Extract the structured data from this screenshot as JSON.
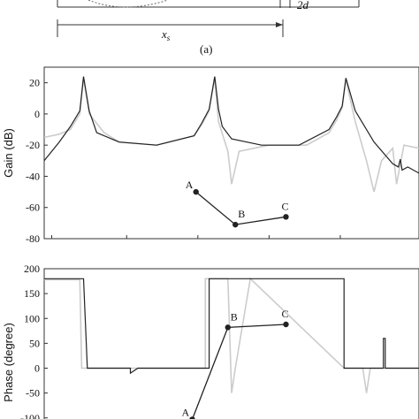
{
  "top_diagram": {
    "x_dimension": "x",
    "x_dimension_sub": "s",
    "gap_dimension": "2d",
    "caption": "(a)"
  },
  "chart_data": [
    {
      "type": "line",
      "ylabel": "Gain (dB)",
      "ylim": [
        -80,
        30
      ],
      "yticks": [
        20,
        0,
        -20,
        -40,
        -60,
        -80
      ],
      "xlim": [
        0,
        1
      ],
      "series": [
        {
          "color": "#222222",
          "x": [
            0,
            0.04,
            0.07,
            0.095,
            0.105,
            0.12,
            0.14,
            0.2,
            0.3,
            0.4,
            0.42,
            0.44,
            0.455,
            0.465,
            0.475,
            0.5,
            0.58,
            0.68,
            0.76,
            0.78,
            0.795,
            0.805,
            0.83,
            0.88,
            0.93,
            0.945,
            0.95,
            0.955,
            0.97,
            1.0
          ],
          "y": [
            -30,
            -18,
            -8,
            2,
            24,
            2,
            -12,
            -18,
            -20,
            -14,
            -6,
            3,
            24,
            3,
            -8,
            -16,
            -20,
            -20,
            -10,
            -2,
            5,
            23,
            2,
            -18,
            -32,
            -34,
            -29,
            -36,
            -34,
            -38
          ]
        },
        {
          "color": "#cccccc",
          "x": [
            0,
            0.04,
            0.07,
            0.095,
            0.105,
            0.12,
            0.16,
            0.2,
            0.3,
            0.4,
            0.42,
            0.44,
            0.455,
            0.465,
            0.49,
            0.5,
            0.52,
            0.6,
            0.7,
            0.76,
            0.78,
            0.795,
            0.805,
            0.83,
            0.86,
            0.88,
            0.9,
            0.93,
            0.94,
            0.96,
            1.0
          ],
          "y": [
            -15,
            -13,
            -10,
            0,
            23,
            0,
            -12,
            -18,
            -20,
            -14,
            -7,
            2,
            23,
            -5,
            -24,
            -45,
            -24,
            -20,
            -20,
            -12,
            -4,
            4,
            22,
            -5,
            -30,
            -50,
            -30,
            -22,
            -45,
            -20,
            -22
          ]
        }
      ],
      "markers": [
        {
          "label": "A",
          "x": 0.405,
          "y": -50
        },
        {
          "label": "B",
          "x": 0.51,
          "y": -71
        },
        {
          "label": "C",
          "x": 0.645,
          "y": -66
        }
      ]
    },
    {
      "type": "line",
      "ylabel": "Phase (degree)",
      "ylim": [
        -120,
        200
      ],
      "yticks": [
        200,
        150,
        100,
        50,
        0,
        -50,
        -100
      ],
      "xlim": [
        0,
        1
      ],
      "series": [
        {
          "color": "#222222",
          "x": [
            0,
            0.02,
            0.02,
            0.105,
            0.115,
            0.12,
            0.2,
            0.23,
            0.23,
            0.25,
            0.3,
            0.4,
            0.44,
            0.44,
            0.53,
            0.53,
            0.8,
            0.8,
            0.9,
            0.905,
            0.905,
            0.91,
            0.91,
            1.0
          ],
          "y": [
            180,
            180,
            180,
            180,
            0,
            0,
            0,
            0,
            -10,
            0,
            0,
            0,
            0,
            180,
            180,
            180,
            180,
            0,
            0,
            0,
            60,
            60,
            0,
            0
          ]
        },
        {
          "color": "#cccccc",
          "x": [
            0,
            0.06,
            0.095,
            0.1,
            0.13,
            0.3,
            0.41,
            0.43,
            0.43,
            0.49,
            0.5,
            0.51,
            0.55,
            0.8,
            0.85,
            0.86,
            0.87,
            0.88,
            0.9,
            1.0
          ],
          "y": [
            178,
            178,
            178,
            0,
            0,
            0,
            0,
            0,
            180,
            180,
            -50,
            0,
            180,
            0,
            0,
            -50,
            0,
            0,
            0,
            0
          ]
        }
      ],
      "markers": [
        {
          "label": "A",
          "x": 0.395,
          "y": -103
        },
        {
          "label": "B",
          "x": 0.49,
          "y": 82
        },
        {
          "label": "C",
          "x": 0.645,
          "y": 88
        }
      ]
    }
  ]
}
